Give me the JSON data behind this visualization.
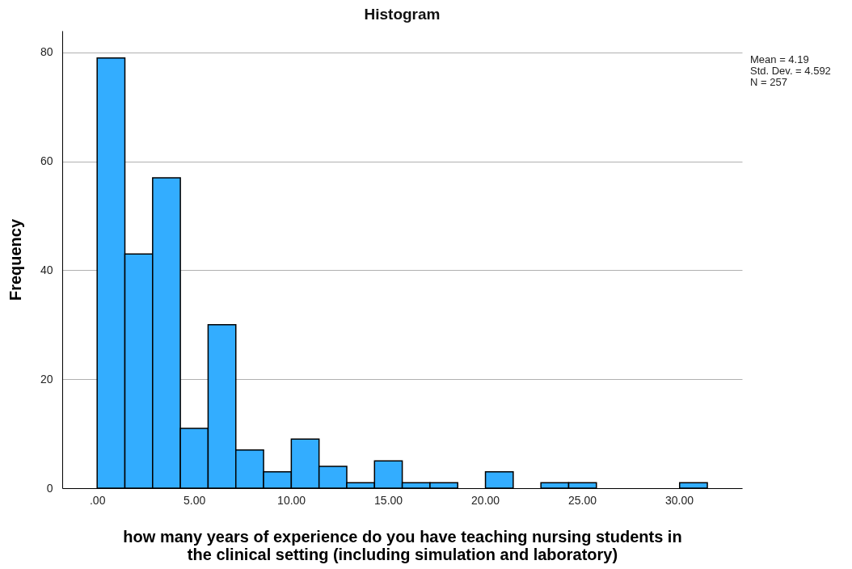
{
  "chart_data": {
    "type": "histogram",
    "title": "Histogram",
    "xlabel": "how many years of experience do you have teaching nursing students in the clinical setting (including simulation and laboratory)",
    "ylabel": "Frequency",
    "bins": [
      0,
      1.43,
      2.86,
      4.29,
      5.72,
      7.15,
      8.58,
      10.01,
      11.44,
      12.87,
      14.3,
      15.73,
      17.16,
      18.59,
      20.02,
      21.45,
      22.88,
      24.31,
      25.74,
      27.17,
      28.6,
      30.03,
      31.46
    ],
    "values": [
      79,
      43,
      57,
      11,
      30,
      7,
      3,
      9,
      4,
      1,
      5,
      1,
      1,
      0,
      3,
      0,
      1,
      1,
      0,
      0,
      0,
      1
    ],
    "color": "#33adff",
    "xlim": [
      -1.8,
      33.25
    ],
    "xticks": [
      {
        "value": 0,
        "label": ".00"
      },
      {
        "value": 5,
        "label": "5.00"
      },
      {
        "value": 10,
        "label": "10.00"
      },
      {
        "value": 15,
        "label": "15.00"
      },
      {
        "value": 20,
        "label": "20.00"
      },
      {
        "value": 25,
        "label": "25.00"
      },
      {
        "value": 30,
        "label": "30.00"
      }
    ],
    "ylim": [
      0,
      84
    ],
    "yticks": [
      0,
      20,
      40,
      60,
      80
    ],
    "grid": "y",
    "annotations": [
      "Mean = 4.19",
      "Std. Dev. = 4.592",
      "N = 257"
    ]
  }
}
